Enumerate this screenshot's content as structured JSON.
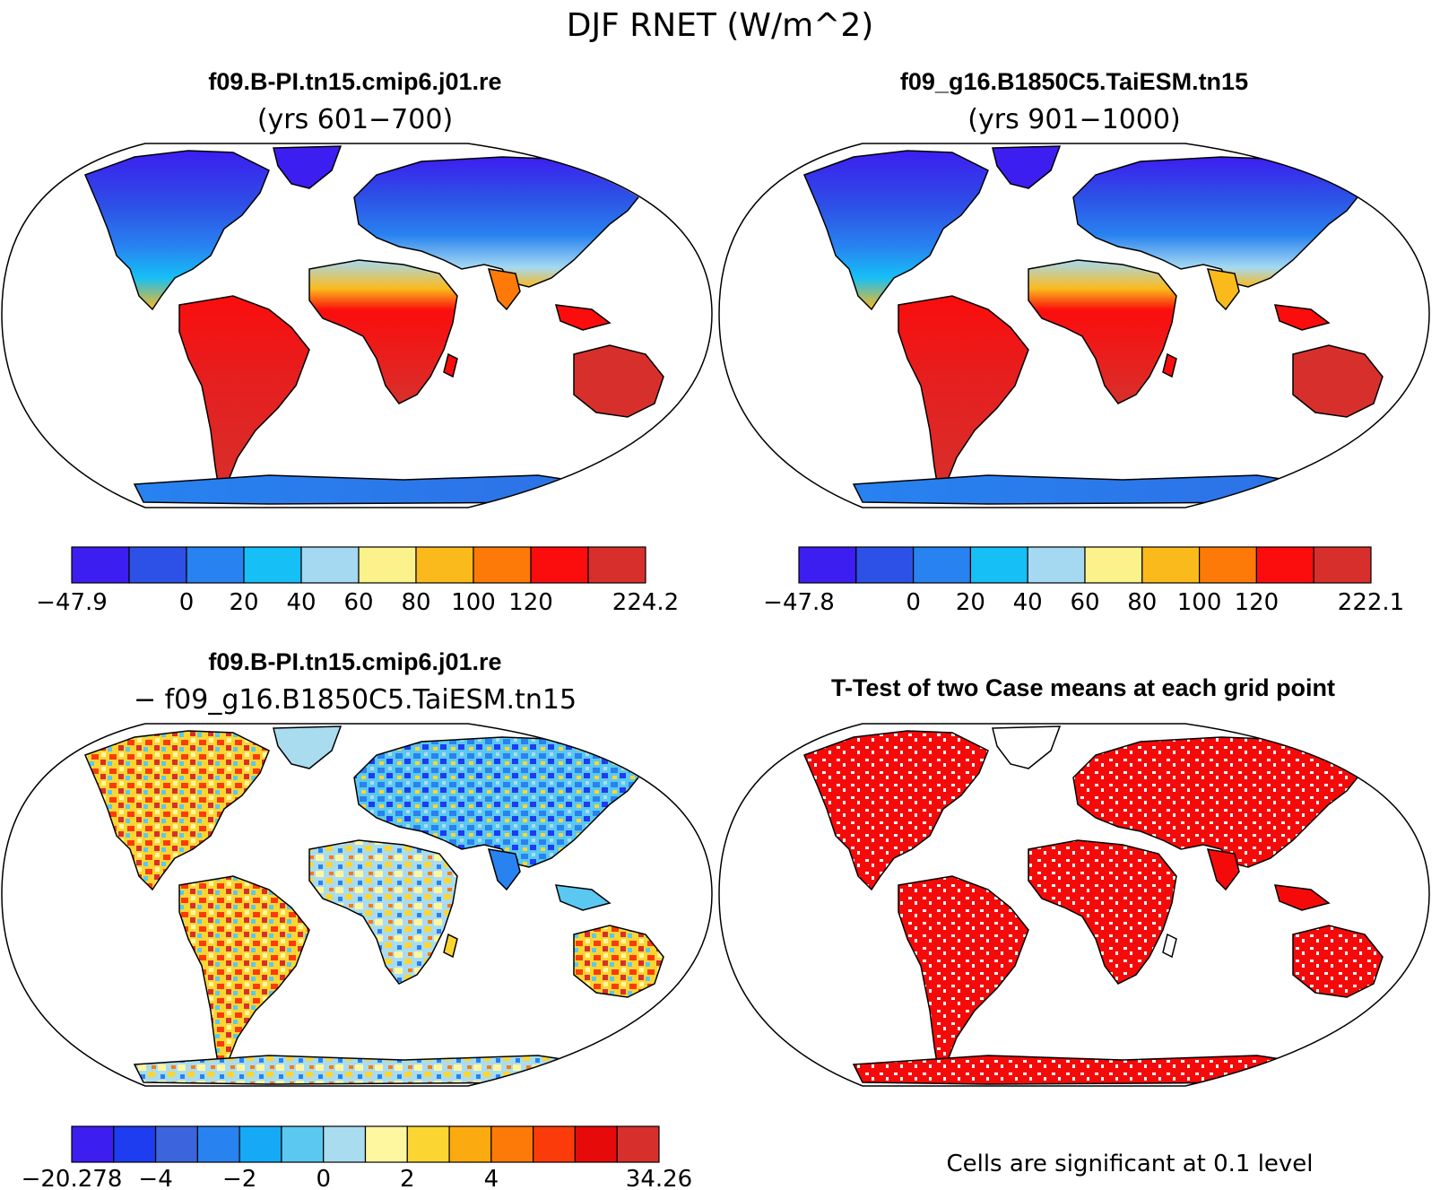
{
  "figure": {
    "main_title": "DJF RNET (W/m^2)"
  },
  "panels": [
    {
      "id": "case1",
      "title": "f09.B-PI.tn15.cmip6.j01.re",
      "subtitle": "(yrs 601−700)",
      "type": "mean",
      "colorbar": {
        "colors": [
          "#3c1ef0",
          "#2d50e6",
          "#2882f0",
          "#16bff6",
          "#a5d9f2",
          "#fbf28c",
          "#fbba1c",
          "#fd7a08",
          "#fb0d0d",
          "#d7302c"
        ],
        "labels": [
          "−47.9",
          "",
          "0",
          "20",
          "40",
          "60",
          "80",
          "100",
          "120",
          "",
          "224.2"
        ]
      }
    },
    {
      "id": "case2",
      "title": "f09_g16.B1850C5.TaiESM.tn15",
      "subtitle": "(yrs 901−1000)",
      "type": "mean",
      "colorbar": {
        "colors": [
          "#3c1ef0",
          "#2d50e6",
          "#2882f0",
          "#16bff6",
          "#a5d9f2",
          "#fbf28c",
          "#fbba1c",
          "#fd7a08",
          "#fb0d0d",
          "#d7302c"
        ],
        "labels": [
          "−47.8",
          "",
          "0",
          "20",
          "40",
          "60",
          "80",
          "100",
          "120",
          "",
          "222.1"
        ]
      }
    },
    {
      "id": "diff",
      "title": "f09.B-PI.tn15.cmip6.j01.re",
      "subtitle": "− f09_g16.B1850C5.TaiESM.tn15",
      "type": "difference",
      "colorbar": {
        "colors": [
          "#3c1ef0",
          "#1e3cf0",
          "#3c64dc",
          "#2882f0",
          "#16aaf6",
          "#5ac8f0",
          "#aadcf0",
          "#fff6a0",
          "#fbd632",
          "#fbaa10",
          "#fd7a08",
          "#fb3c0a",
          "#e60a0a",
          "#d7302c"
        ],
        "labels": [
          "−20.278",
          "",
          "−4",
          "",
          "−2",
          "",
          "0",
          "",
          "2",
          "",
          "4",
          "",
          "",
          "",
          "34.26"
        ],
        "label_slots": [
          0,
          3,
          5,
          7,
          9,
          11,
          14
        ]
      }
    },
    {
      "id": "ttest",
      "title": "T-Test of two Case means at each grid point",
      "type": "significance",
      "footnote": "Cells are significant at 0.1 level",
      "color": "#f50a0a"
    }
  ]
}
